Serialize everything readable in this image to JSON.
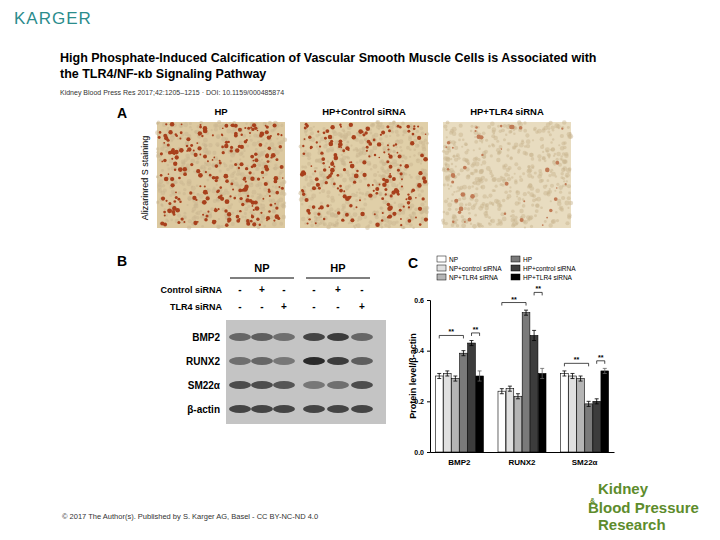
{
  "header": {
    "logo": "KARGER",
    "title_lines": [
      "High Phosphate-Induced Calcification of Vascular Smooth Muscle Cells is Associated with",
      "the TLR4/NF-κb Signaling Pathway"
    ],
    "citation": "Kidney Blood Press Res 2017;42:1205–1215 · DOI: 10.1159/000485874"
  },
  "panel_a": {
    "label": "A",
    "y_label": "Alizarinred S staining",
    "images": [
      "HP",
      "HP+Control siRNA",
      "HP+TLR4 siRNA"
    ]
  },
  "panel_b": {
    "label": "B",
    "groups": [
      "NP",
      "HP"
    ],
    "rows": [
      {
        "label": "Control siRNA",
        "signs": [
          "-",
          "+",
          "-",
          "-",
          "+",
          "-"
        ]
      },
      {
        "label": "TLR4 siRNA",
        "signs": [
          "-",
          "-",
          "+",
          "-",
          "-",
          "+"
        ]
      }
    ],
    "proteins": [
      "BMP2",
      "RUNX2",
      "SM22α",
      "β-actin"
    ]
  },
  "panel_c": {
    "label": "C"
  },
  "chart_data": {
    "type": "bar",
    "y_label": "Protein level/β-actin",
    "categories": [
      "BMP2",
      "RUNX2",
      "SM22α"
    ],
    "series": [
      {
        "name": "NP",
        "color": "#ffffff",
        "values": [
          0.3,
          0.24,
          0.31
        ],
        "errors": [
          0.01,
          0.01,
          0.01
        ]
      },
      {
        "name": "NP+control siRNA",
        "color": "#e0e0e0",
        "values": [
          0.31,
          0.25,
          0.3
        ],
        "errors": [
          0.01,
          0.01,
          0.01
        ]
      },
      {
        "name": "NP+TLR4 siRNA",
        "color": "#b5b5b5",
        "values": [
          0.29,
          0.22,
          0.29
        ],
        "errors": [
          0.01,
          0.01,
          0.01
        ]
      },
      {
        "name": "HP",
        "color": "#7a7a7a",
        "values": [
          0.39,
          0.55,
          0.19
        ],
        "errors": [
          0.01,
          0.01,
          0.01
        ]
      },
      {
        "name": "HP+control siRNA",
        "color": "#3c3c3c",
        "values": [
          0.43,
          0.46,
          0.2
        ],
        "errors": [
          0.01,
          0.02,
          0.01
        ]
      },
      {
        "name": "HP+TLR4 siRNA",
        "color": "#000000",
        "values": [
          0.3,
          0.31,
          0.32
        ],
        "errors": [
          0.02,
          0.02,
          0.01
        ]
      }
    ],
    "ylim": [
      0,
      0.6
    ],
    "yticks": [
      {
        "value": 0,
        "label": "0.0"
      },
      0.2,
      0.4,
      0.6
    ],
    "legend": "top",
    "annotations": [
      {
        "text": "**",
        "category": 0,
        "from": 0,
        "to": 3,
        "y": 0.46
      },
      {
        "text": "**",
        "category": 0,
        "from": 4,
        "to": 5,
        "y": 0.47
      },
      {
        "text": "**",
        "category": 1,
        "from": 0,
        "to": 3,
        "y": 0.59
      },
      {
        "text": "**",
        "category": 1,
        "from": 4,
        "to": 5,
        "y": 0.63
      },
      {
        "text": "**",
        "category": 2,
        "from": 0,
        "to": 3,
        "y": 0.35
      },
      {
        "text": "**",
        "category": 2,
        "from": 4,
        "to": 5,
        "y": 0.36
      }
    ]
  },
  "footer": {
    "copyright": "© 2017 The Author(s). Published by S. Karger AG, Basel - CC BY-NC-ND 4.0",
    "journal": [
      "Kidney",
      "&",
      "Blood Pressure",
      "Research"
    ]
  }
}
